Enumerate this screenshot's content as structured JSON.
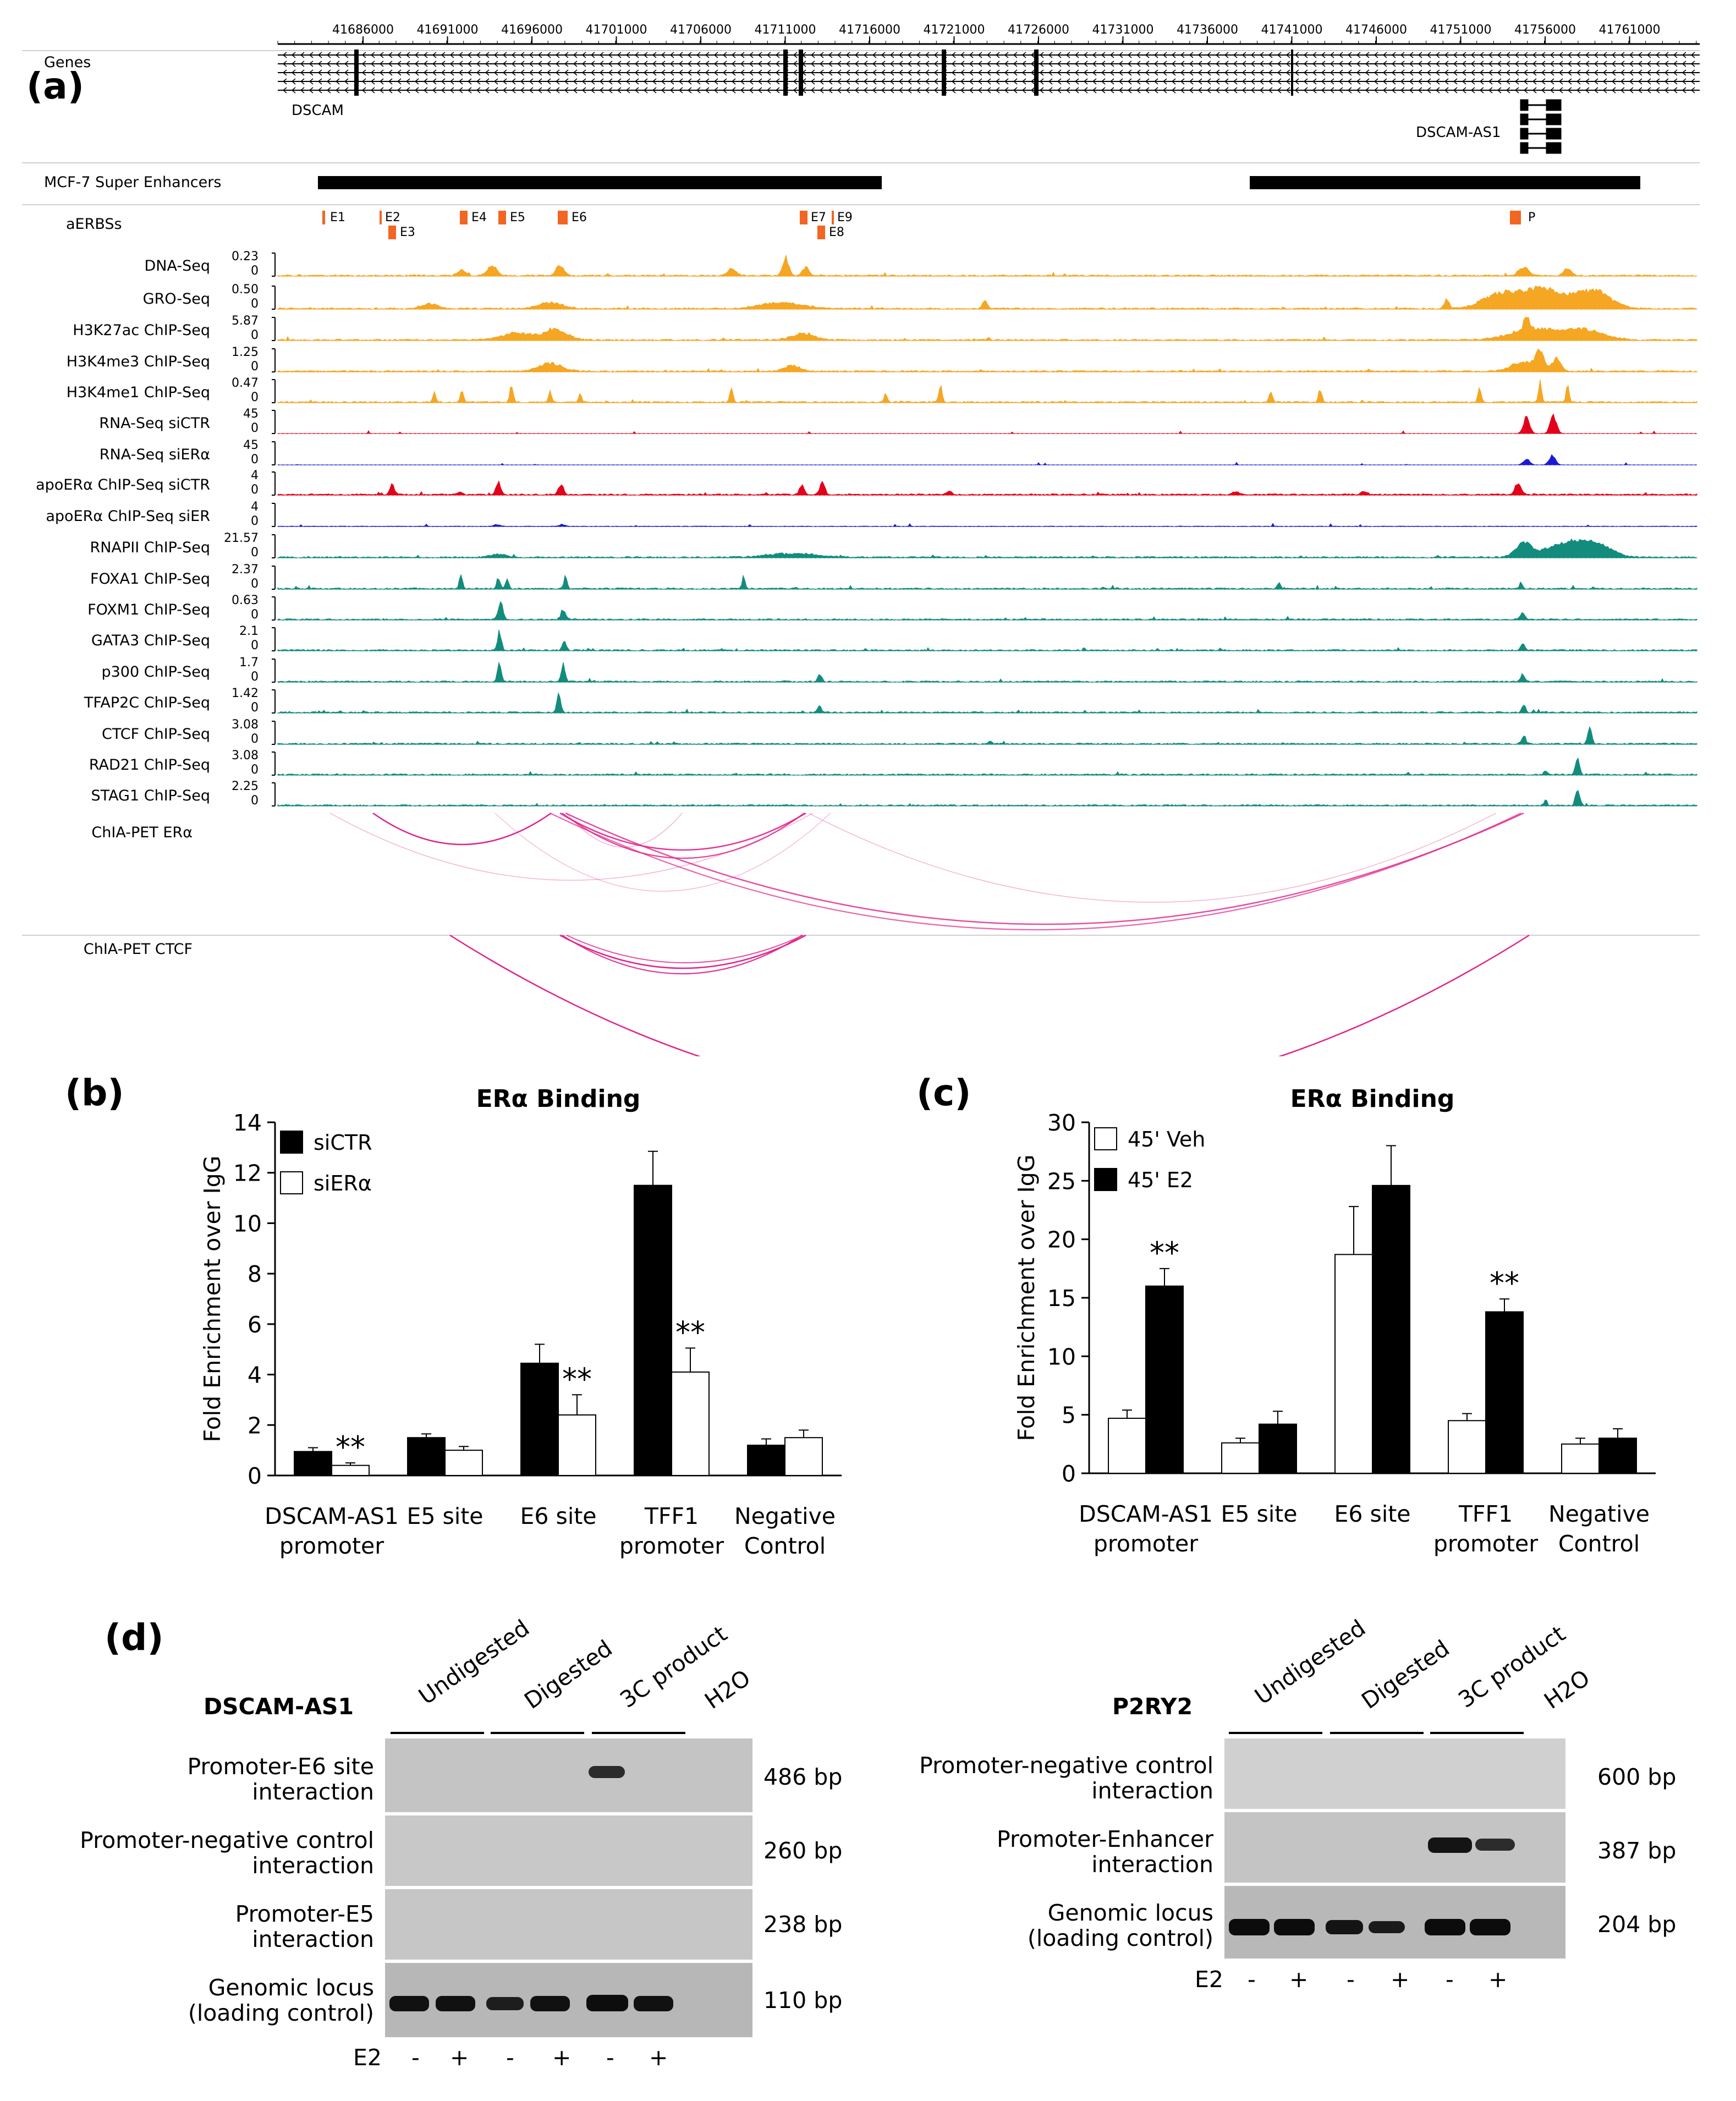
{
  "panel_letters": {
    "a": "(a)",
    "b": "(b)",
    "c": "(c)",
    "d": "(d)"
  },
  "browser": {
    "coordinates": [
      "41686000",
      "41691000",
      "41696000",
      "41701000",
      "41706000",
      "41711000",
      "41716000",
      "41721000",
      "41726000",
      "41731000",
      "41736000",
      "41741000",
      "41746000",
      "41751000",
      "41756000",
      "41761000"
    ],
    "genes_label": "Genes",
    "gene_names": {
      "dscam": "DSCAM",
      "dscam_as1": "DSCAM-AS1"
    },
    "super_enhancer_label": "MCF-7 Super Enhancers",
    "aerbs_label": "aERBSs",
    "aerbs": [
      "E1",
      "E2",
      "E3",
      "E4",
      "E5",
      "E6",
      "E7",
      "E9",
      "E8",
      "P"
    ],
    "tracks": [
      {
        "label": "DNA-Seq",
        "max": "0.23",
        "min": "0",
        "color": "#f5a623"
      },
      {
        "label": "GRO-Seq",
        "max": "0.50",
        "min": "0",
        "color": "#f5a623"
      },
      {
        "label": "H3K27ac ChIP-Seq",
        "max": "5.87",
        "min": "0",
        "color": "#f5a623"
      },
      {
        "label": "H3K4me3 ChIP-Seq",
        "max": "1.25",
        "min": "0",
        "color": "#f5a623"
      },
      {
        "label": "H3K4me1 ChIP-Seq",
        "max": "0.47",
        "min": "0",
        "color": "#f5a623"
      },
      {
        "label": "RNA-Seq siCTR",
        "max": "45",
        "min": "0",
        "color": "#e3001b"
      },
      {
        "label": "RNA-Seq siERα",
        "max": "45",
        "min": "0",
        "color": "#1a1ad6"
      },
      {
        "label": "apoERα ChIP-Seq siCTR",
        "max": "4",
        "min": "0",
        "color": "#e3001b"
      },
      {
        "label": "apoERα ChIP-Seq siER",
        "max": "4",
        "min": "0",
        "color": "#1a1ad6"
      },
      {
        "label": "RNAPII ChIP-Seq",
        "max": "21.57",
        "min": "0",
        "color": "#138c7e"
      },
      {
        "label": "FOXA1 ChIP-Seq",
        "max": "2.37",
        "min": "0",
        "color": "#138c7e"
      },
      {
        "label": "FOXM1 ChIP-Seq",
        "max": "0.63",
        "min": "0",
        "color": "#138c7e"
      },
      {
        "label": "GATA3 ChIP-Seq",
        "max": "2.1",
        "min": "0",
        "color": "#138c7e"
      },
      {
        "label": "p300 ChIP-Seq",
        "max": "1.7",
        "min": "0",
        "color": "#138c7e"
      },
      {
        "label": "TFAP2C ChIP-Seq",
        "max": "1.42",
        "min": "0",
        "color": "#138c7e"
      },
      {
        "label": "CTCF ChIP-Seq",
        "max": "3.08",
        "min": "0",
        "color": "#138c7e"
      },
      {
        "label": "RAD21 ChIP-Seq",
        "max": "3.08",
        "min": "0",
        "color": "#138c7e"
      },
      {
        "label": "STAG1 ChIP-Seq",
        "max": "2.25",
        "min": "0",
        "color": "#138c7e"
      }
    ],
    "chiapet_era_label": "ChIA-PET ERα",
    "chiapet_ctcf_label": "ChIA-PET CTCF",
    "arc_color": "#e0218a"
  },
  "chart_data": [
    {
      "type": "bar",
      "title": "ERα Binding",
      "ylabel": "Fold Enrichment over IgG",
      "xlabel": "",
      "ylim": [
        0,
        14
      ],
      "yticks": [
        0,
        2,
        4,
        6,
        8,
        10,
        12,
        14
      ],
      "categories": [
        "DSCAM-AS1\npromoter",
        "E5 site",
        "E6 site",
        "TFF1\npromoter",
        "Negative\nControl"
      ],
      "series": [
        {
          "name": "siCTR",
          "fill": "#000000",
          "values": [
            0.95,
            1.5,
            4.45,
            11.5,
            1.2
          ],
          "errors": [
            0.15,
            0.15,
            0.75,
            1.35,
            0.25
          ]
        },
        {
          "name": "siERα",
          "fill": "#ffffff",
          "values": [
            0.4,
            1.0,
            2.4,
            4.1,
            1.5
          ],
          "errors": [
            0.1,
            0.15,
            0.8,
            0.95,
            0.3
          ]
        }
      ],
      "significance": [
        {
          "category": 0,
          "label": "**"
        },
        {
          "category": 2,
          "label": "**"
        },
        {
          "category": 3,
          "label": "**"
        }
      ],
      "legend": "top-left"
    },
    {
      "type": "bar",
      "title": "ERα Binding",
      "ylabel": "Fold Enrichment over IgG",
      "xlabel": "",
      "ylim": [
        0,
        30
      ],
      "yticks": [
        0,
        5,
        10,
        15,
        20,
        25,
        30
      ],
      "categories": [
        "DSCAM-AS1\npromoter",
        "E5 site",
        "E6 site",
        "TFF1\npromoter",
        "Negative\nControl"
      ],
      "series": [
        {
          "name": "45' Veh",
          "fill": "#ffffff",
          "values": [
            4.7,
            2.6,
            18.7,
            4.5,
            2.5
          ],
          "errors": [
            0.7,
            0.4,
            4.1,
            0.6,
            0.5
          ]
        },
        {
          "name": "45' E2",
          "fill": "#000000",
          "values": [
            16.0,
            4.2,
            24.6,
            13.8,
            3.0
          ],
          "errors": [
            1.5,
            1.1,
            3.4,
            1.1,
            0.8
          ]
        }
      ],
      "significance": [
        {
          "category": 0,
          "label": "**"
        },
        {
          "category": 3,
          "label": "**"
        }
      ],
      "legend": "top-left"
    }
  ],
  "gels": {
    "left": {
      "title": "DSCAM-AS1",
      "lane_headers": [
        "Undigested",
        "Digested",
        "3C product",
        "H2O"
      ],
      "rows": [
        {
          "label": "Promoter-E6 site\ninteraction",
          "size": "486 bp"
        },
        {
          "label": "Promoter-negative control\ninteraction",
          "size": "260 bp"
        },
        {
          "label": "Promoter-E5\ninteraction",
          "size": "238 bp"
        },
        {
          "label": "Genomic locus\n(loading control)",
          "size": "110 bp"
        }
      ],
      "e2_label": "E2",
      "e2_signs": [
        "-",
        "+",
        "-",
        "+",
        "-",
        "+"
      ]
    },
    "right": {
      "title": "P2RY2",
      "lane_headers": [
        "Undigested",
        "Digested",
        "3C product",
        "H2O"
      ],
      "rows": [
        {
          "label": "Promoter-negative control\ninteraction",
          "size": "600 bp"
        },
        {
          "label": "Promoter-Enhancer\ninteraction",
          "size": "387 bp"
        },
        {
          "label": "Genomic locus\n(loading control)",
          "size": "204 bp"
        }
      ],
      "e2_label": "E2",
      "e2_signs": [
        "-",
        "+",
        "-",
        "+",
        "-",
        "+"
      ]
    }
  }
}
